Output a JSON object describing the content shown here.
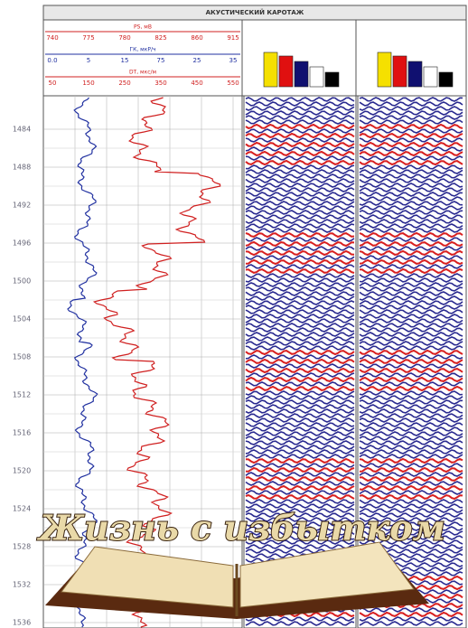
{
  "header": {
    "title": "АКУСТИЧЕСКИЙ КАРОТАЖ",
    "scales": [
      {
        "name": "PS, мВ",
        "ticks": [
          "740",
          "775",
          "780",
          "825",
          "860",
          "915"
        ]
      },
      {
        "name": "ГК, мкР/ч",
        "ticks": [
          "0.0",
          "5",
          "15",
          "75",
          "25",
          "35"
        ]
      },
      {
        "name": "DT, мкс/м",
        "ticks": [
          "50",
          "150",
          "250",
          "350",
          "450",
          "550"
        ]
      }
    ]
  },
  "depths": [
    "1484",
    "1488",
    "1492",
    "1496",
    "1500",
    "1504",
    "1508",
    "1512",
    "1516",
    "1520",
    "1524",
    "1528",
    "1532",
    "1536"
  ],
  "caption": "Жизнь с избытком"
}
